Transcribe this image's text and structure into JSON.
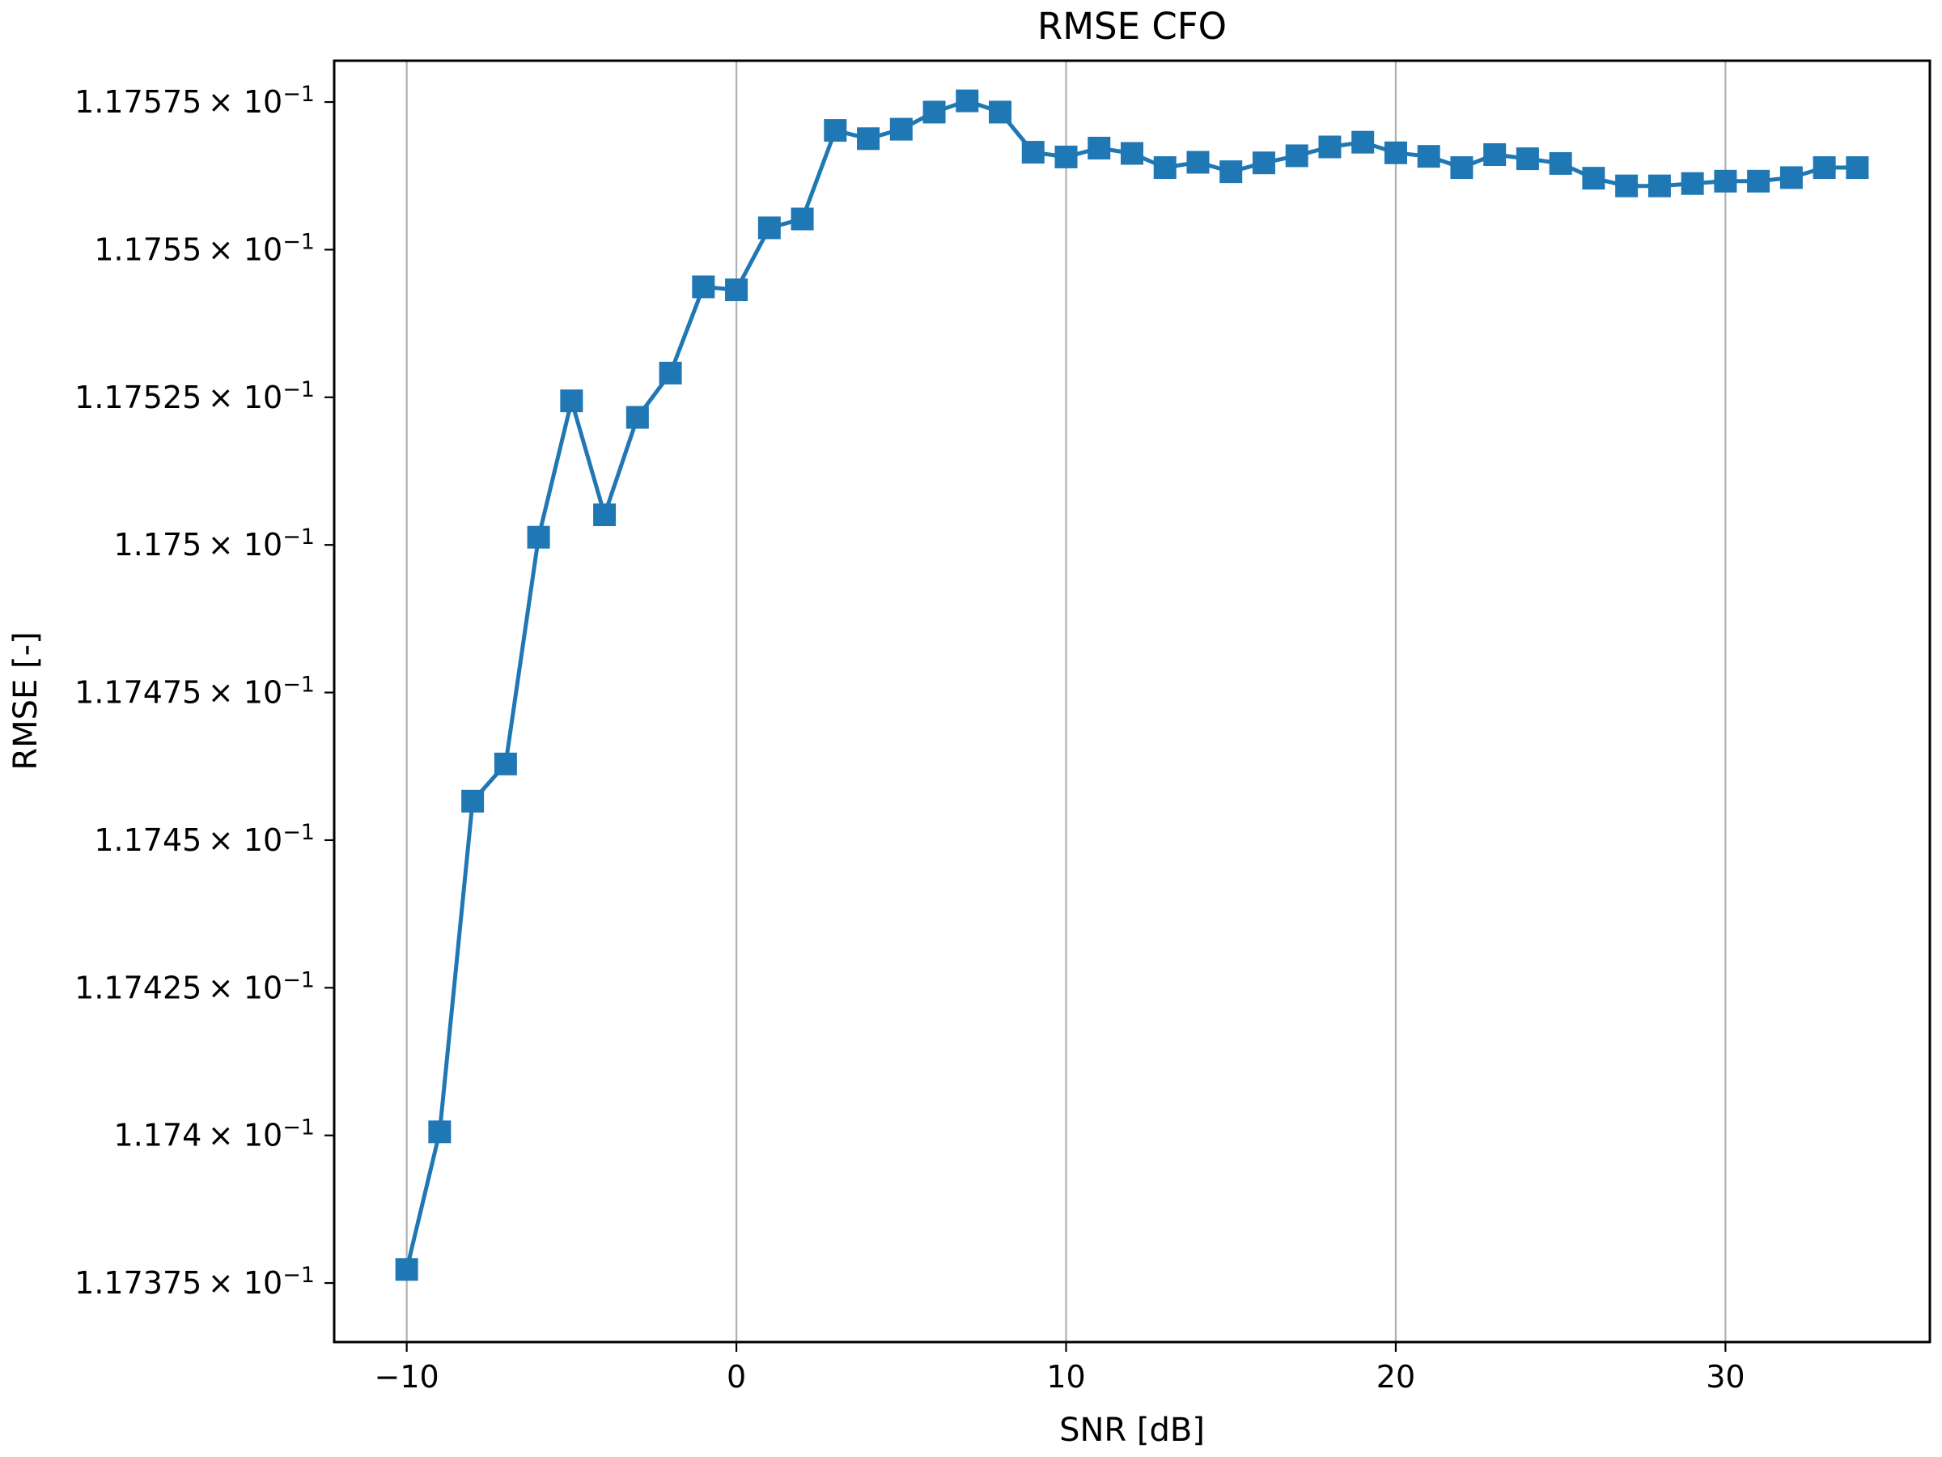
{
  "chart_data": {
    "type": "line",
    "title": "RMSE CFO",
    "xlabel": "SNR [dB]",
    "ylabel": "RMSE [-]",
    "xlim": [
      -12.2,
      36.2
    ],
    "ylim": [
      0.117365,
      0.117582
    ],
    "grid": "x-major-only",
    "x_ticks": [
      -10,
      0,
      10,
      20,
      30
    ],
    "x_tick_labels": [
      "−10",
      "0",
      "10",
      "20",
      "30"
    ],
    "y_ticks": [
      0.117375,
      0.1174,
      0.117425,
      0.11745,
      0.117475,
      0.1175,
      0.117525,
      0.11755,
      0.117575
    ],
    "y_tick_labels": [
      "1.17375",
      "1.174",
      "1.17425",
      "1.1745",
      "1.17475",
      "1.175",
      "1.17525",
      "1.1755",
      "1.17575"
    ],
    "y_tick_suffix": "× 10",
    "y_tick_exponent": "−1",
    "colors": {
      "series": "#1f77b4",
      "grid": "#b0b0b0"
    },
    "series": [
      {
        "marker": "square",
        "x": [
          -10,
          -9,
          -8,
          -7,
          -6,
          -5,
          -4,
          -3,
          -2,
          -1,
          0,
          1,
          2,
          3,
          4,
          5,
          6,
          7,
          8,
          9,
          10,
          11,
          12,
          13,
          14,
          15,
          16,
          17,
          18,
          19,
          20,
          21,
          22,
          23,
          24,
          25,
          26,
          27,
          28,
          29,
          30,
          31,
          32,
          33,
          34
        ],
        "y": [
          0.1173773,
          0.1174006,
          0.1174566,
          0.1174629,
          0.1175013,
          0.1175244,
          0.1175051,
          0.1175216,
          0.1175291,
          0.1175437,
          0.1175432,
          0.1175537,
          0.1175552,
          0.1175702,
          0.1175688,
          0.1175704,
          0.1175733,
          0.1175752,
          0.1175733,
          0.1175665,
          0.1175657,
          0.1175672,
          0.1175663,
          0.1175639,
          0.1175648,
          0.1175632,
          0.1175647,
          0.1175659,
          0.1175674,
          0.1175682,
          0.1175664,
          0.1175658,
          0.1175639,
          0.1175661,
          0.1175654,
          0.1175646,
          0.1175621,
          0.1175608,
          0.1175608,
          0.1175612,
          0.1175616,
          0.1175616,
          0.1175622,
          0.1175639,
          0.1175639
        ]
      }
    ]
  }
}
